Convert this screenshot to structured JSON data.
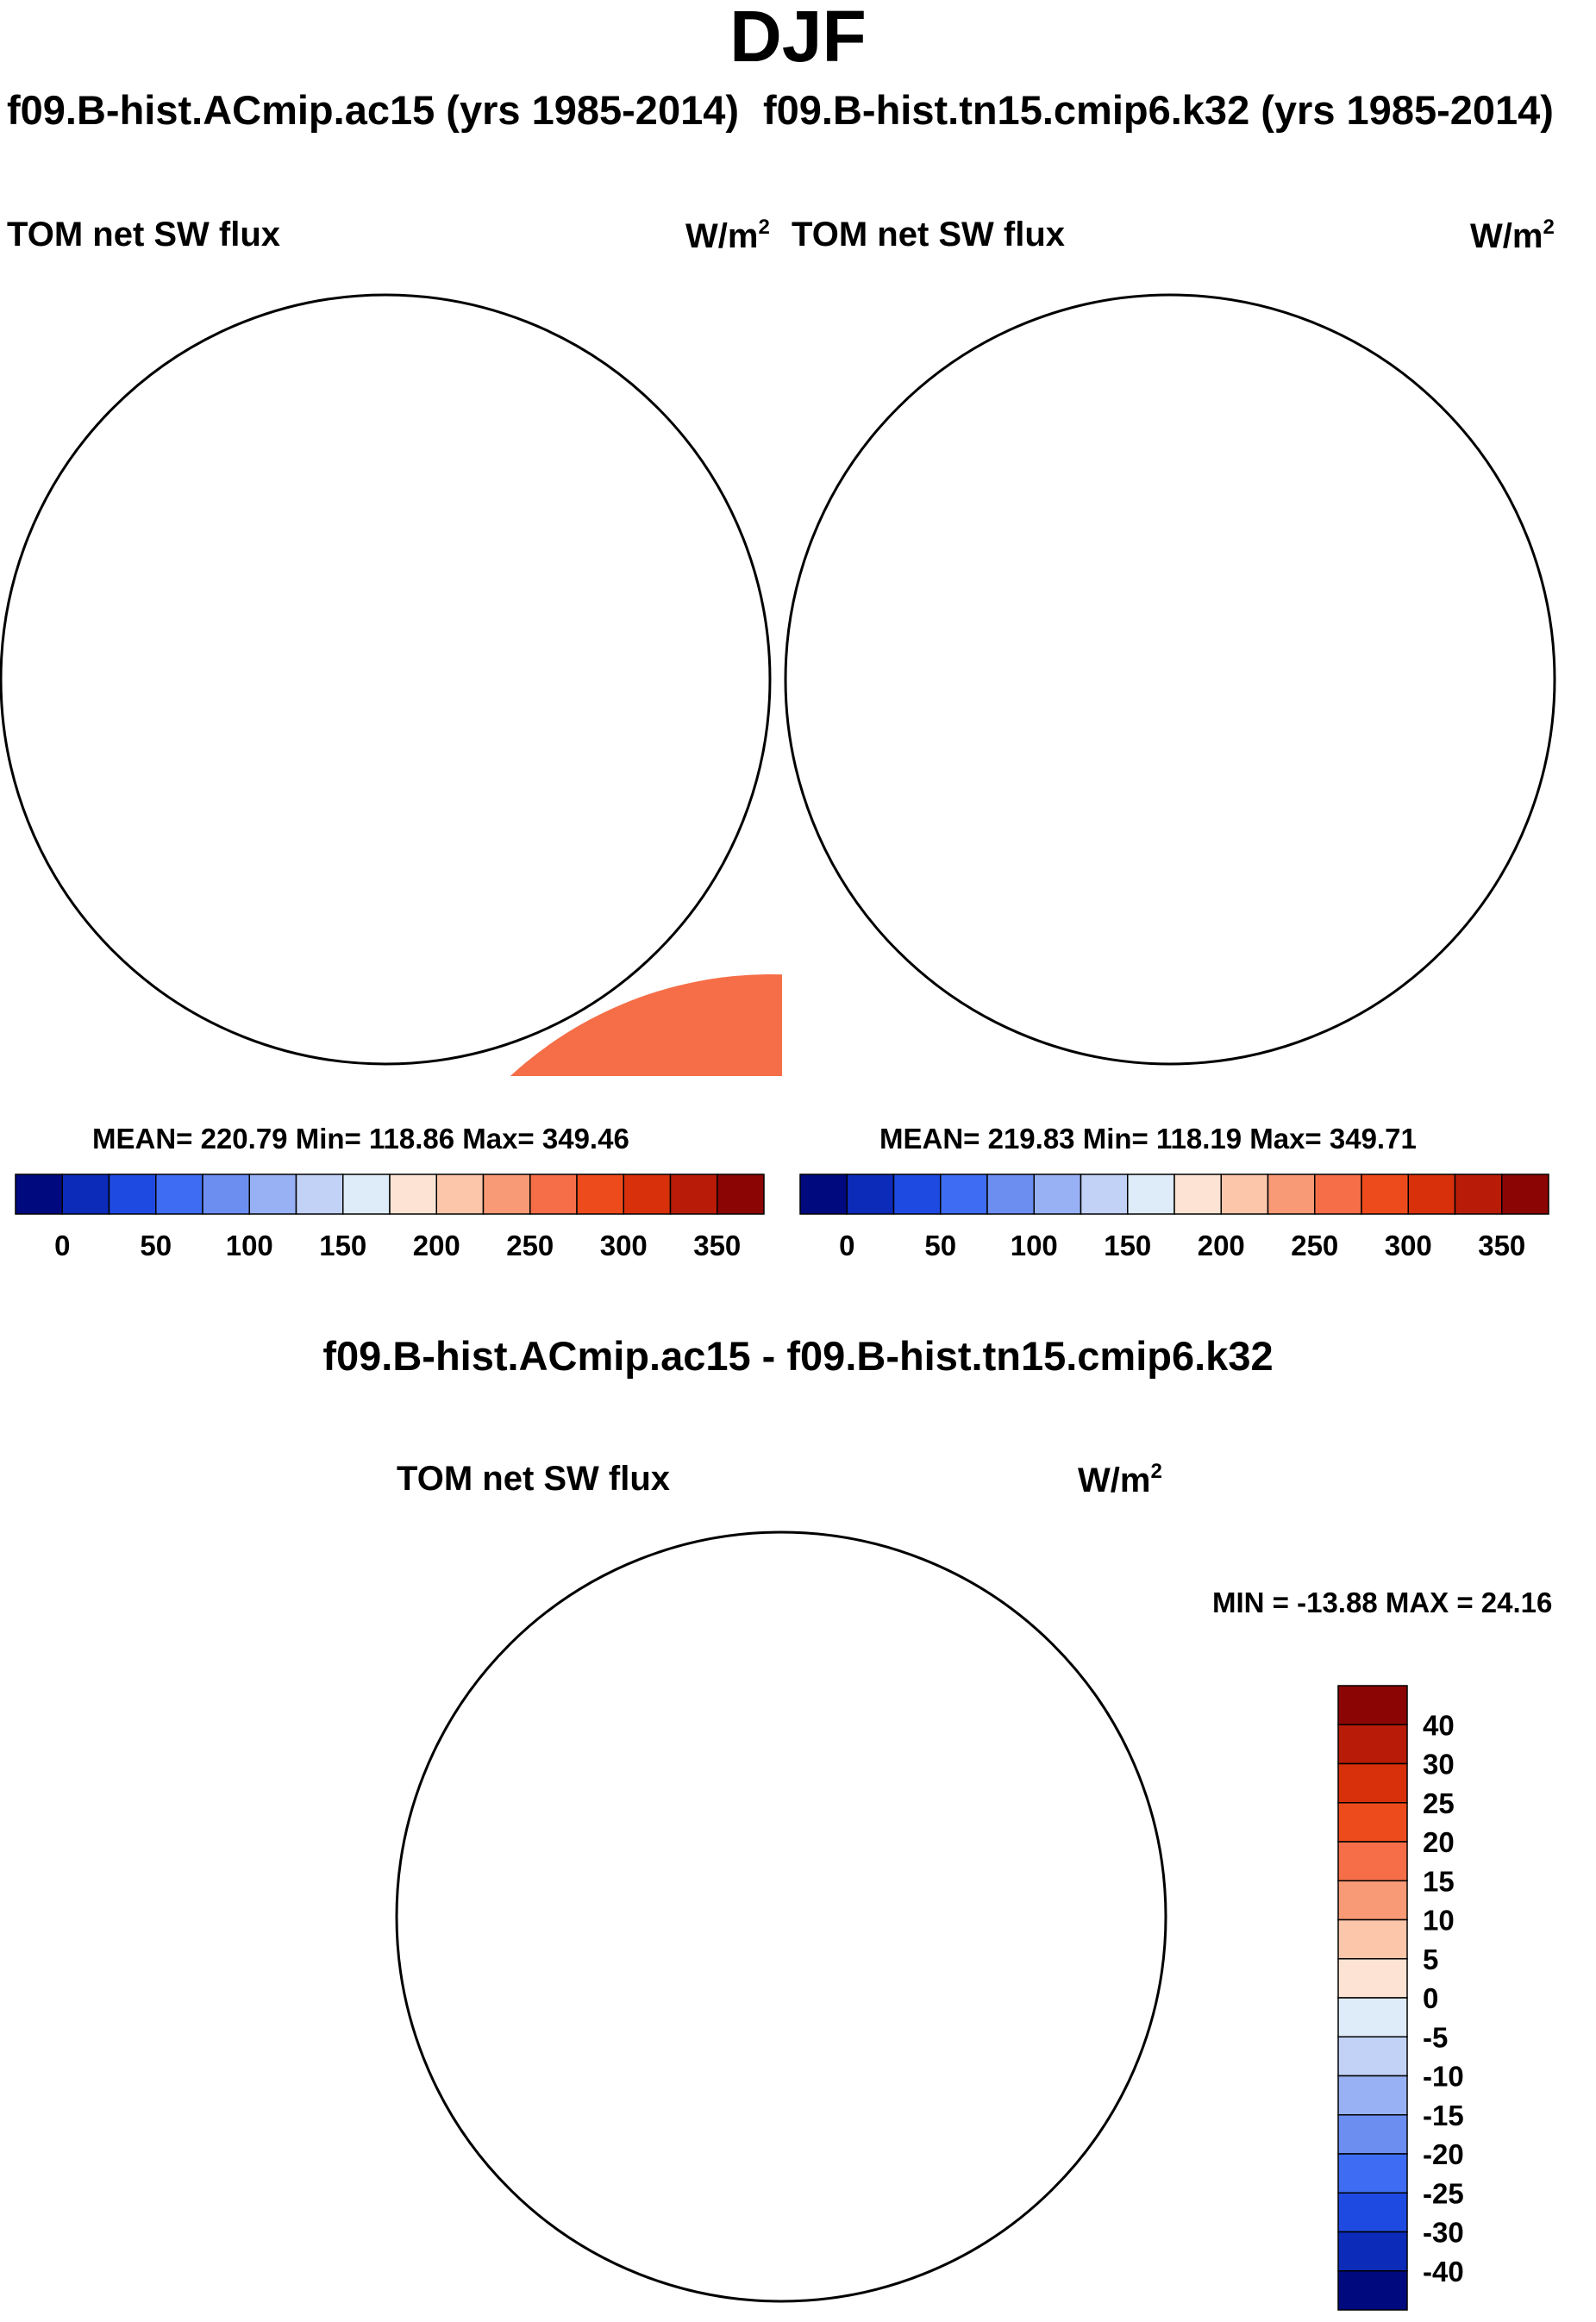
{
  "title": "DJF",
  "panels": [
    {
      "case_title": "f09.B-hist.ACmip.ac15 (yrs 1985-2014)",
      "variable": "TOM net SW flux",
      "units_base": "W/m",
      "units_exp": "2",
      "stats": "MEAN= 220.79  Min= 118.86  Max= 349.46"
    },
    {
      "case_title": "f09.B-hist.tn15.cmip6.k32 (yrs 1985-2014)",
      "variable": "TOM net SW flux",
      "units_base": "W/m",
      "units_exp": "2",
      "stats": "MEAN= 219.83  Min= 118.19  Max= 349.71"
    }
  ],
  "difference": {
    "title": "f09.B-hist.ACmip.ac15 - f09.B-hist.tn15.cmip6.k32",
    "variable": "TOM net SW flux",
    "units_base": "W/m",
    "units_exp": "2",
    "minmax": "MIN = -13.88 MAX =  24.16"
  },
  "colorbar_main": {
    "labels": [
      "0",
      "50",
      "100",
      "150",
      "200",
      "250",
      "300",
      "350"
    ],
    "colors": [
      "#000a7e",
      "#0b2bb8",
      "#1f4ae2",
      "#3e6cf2",
      "#6b8ef0",
      "#98b1f4",
      "#c2d2f6",
      "#deebf8",
      "#fce3d3",
      "#fbc6aa",
      "#f89a75",
      "#f56e47",
      "#ee4b1c",
      "#d7300b",
      "#b81c08",
      "#8c0505"
    ]
  },
  "colorbar_diff": {
    "labels": [
      "40",
      "30",
      "25",
      "20",
      "15",
      "10",
      "5",
      "0",
      "-5",
      "-10",
      "-15",
      "-20",
      "-25",
      "-30",
      "-40"
    ],
    "colors": [
      "#8c0505",
      "#b81c08",
      "#d7300b",
      "#ee4b1c",
      "#f56e47",
      "#f89a75",
      "#fbc6aa",
      "#fce3d3",
      "#deebf8",
      "#c2d2f6",
      "#98b1f4",
      "#6b8ef0",
      "#3e6cf2",
      "#1f4ae2",
      "#0b2bb8",
      "#000a7e"
    ]
  }
}
